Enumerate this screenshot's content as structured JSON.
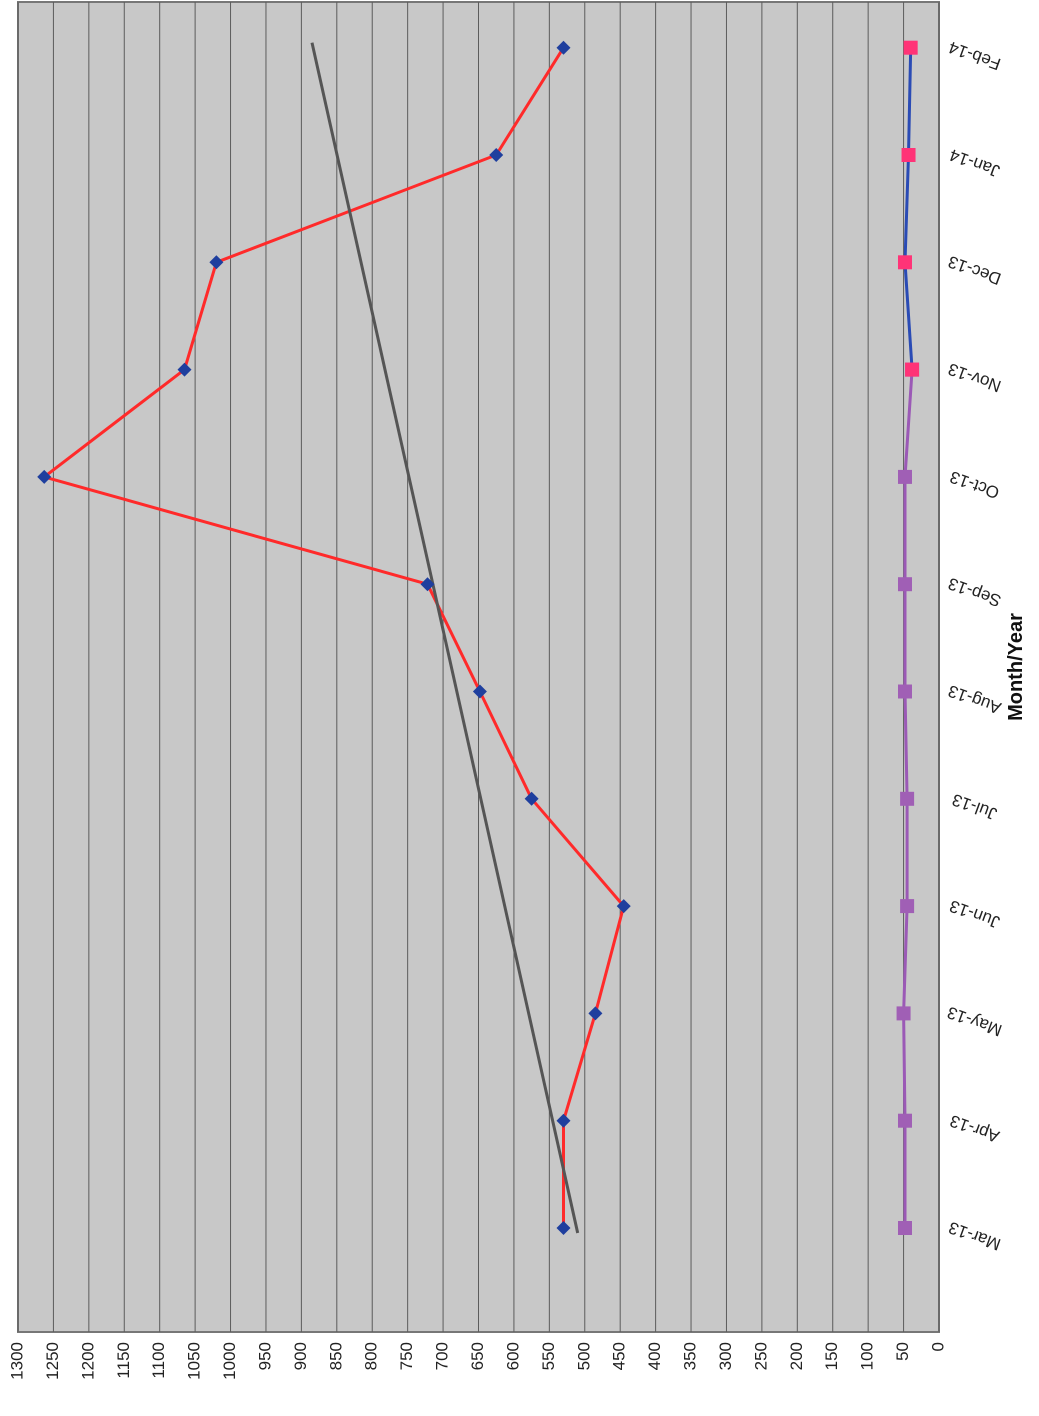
{
  "chart_data": {
    "type": "line",
    "orientation": "rotated-90",
    "xlabel": "Month/Year",
    "ylabel": "",
    "ylim": [
      0,
      1300
    ],
    "y_ticks": [
      0,
      50,
      100,
      150,
      200,
      250,
      300,
      350,
      400,
      450,
      500,
      550,
      600,
      650,
      700,
      750,
      800,
      850,
      900,
      950,
      1000,
      1050,
      1100,
      1150,
      1200,
      1250,
      1300
    ],
    "categories": [
      "Mar-13",
      "Apr-13",
      "May-13",
      "Jun-13",
      "Jul-13",
      "Aug-13",
      "Sep-13",
      "Oct-13",
      "Nov-13",
      "Dec-13",
      "Jan-14",
      "Feb-14"
    ],
    "grid": true,
    "series": [
      {
        "role": "primary",
        "color": "#ff2a2a",
        "marker": "diamond",
        "marker_color": "#1f3f9e",
        "values": [
          530,
          530,
          485,
          445,
          575,
          648,
          722,
          1263,
          1065,
          1020,
          625,
          530
        ]
      },
      {
        "role": "trend",
        "color": "#555555",
        "marker": "none",
        "values_at_first_last": [
          510,
          885
        ]
      },
      {
        "role": "secondary-part1",
        "color": "#9b59b6",
        "marker": "square",
        "marker_color": "#a05fb5",
        "points": [
          [
            0,
            48
          ],
          [
            1,
            48
          ],
          [
            2,
            50
          ],
          [
            3,
            45
          ],
          [
            4,
            45
          ],
          [
            5,
            48
          ],
          [
            6,
            48
          ],
          [
            7,
            48
          ],
          [
            8,
            38
          ]
        ]
      },
      {
        "role": "secondary-part2",
        "color": "#2a4bb5",
        "marker": "square",
        "marker_color": "#ff3377",
        "points": [
          [
            8,
            38
          ],
          [
            9,
            48
          ],
          [
            10,
            43
          ],
          [
            11,
            40
          ]
        ]
      }
    ]
  }
}
